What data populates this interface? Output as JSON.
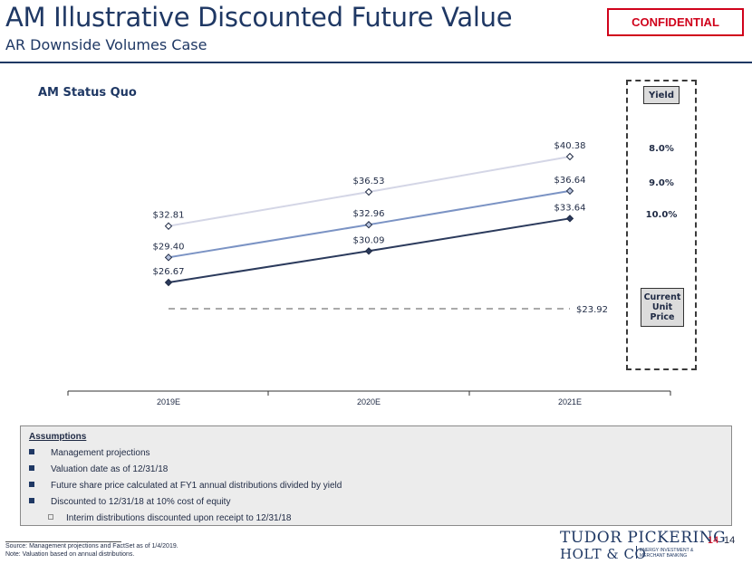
{
  "header": {
    "title": "AM Illustrative Discounted Future Value",
    "subtitle": "AR Downside Volumes Case",
    "confidential": "CONFIDENTIAL"
  },
  "chart_data": {
    "type": "line",
    "title": "AM Status Quo",
    "categories": [
      "2019E",
      "2020E",
      "2021E"
    ],
    "series": [
      {
        "name": "8.0%",
        "values": [
          32.81,
          36.53,
          40.38
        ],
        "labels": [
          "$32.81",
          "$36.53",
          "$40.38"
        ],
        "color": "#d4d6e6"
      },
      {
        "name": "9.0%",
        "values": [
          29.4,
          32.96,
          36.64
        ],
        "labels": [
          "$29.40",
          "$32.96",
          "$36.64"
        ],
        "color": "#7b93c4"
      },
      {
        "name": "10.0%",
        "values": [
          26.67,
          30.09,
          33.64
        ],
        "labels": [
          "$26.67",
          "$30.09",
          "$33.64"
        ],
        "color": "#2b3a5c"
      }
    ],
    "reference": {
      "name": "Current Unit Price",
      "value": 23.92,
      "label": "$23.92"
    },
    "ylim": [
      20,
      44
    ],
    "grid": false,
    "legend": "right"
  },
  "yield_panel": {
    "header": "Yield",
    "values": [
      "8.0%",
      "9.0%",
      "10.0%"
    ],
    "current_label": [
      "Current",
      "Unit",
      "Price"
    ]
  },
  "assumptions": {
    "heading": "Assumptions",
    "items": [
      "Management projections",
      "Valuation date as of 12/31/18",
      "Future share price calculated at FY1 annual distributions divided by yield",
      "Discounted to 12/31/18 at 10% cost of equity"
    ],
    "sub_items": [
      "Interim distributions discounted upon receipt to 12/31/18"
    ]
  },
  "footnotes": [
    "Source: Management projections and FactSet as of 1/4/2019.",
    "Note: Valuation based on annual distributions."
  ],
  "logo": {
    "line1": "TUDOR PICKERING",
    "line2": "HOLT & CO",
    "sub": "ENERGY INVESTMENT & MERCHANT BANKING"
  },
  "page": {
    "number_red": "14",
    "number": "14"
  }
}
